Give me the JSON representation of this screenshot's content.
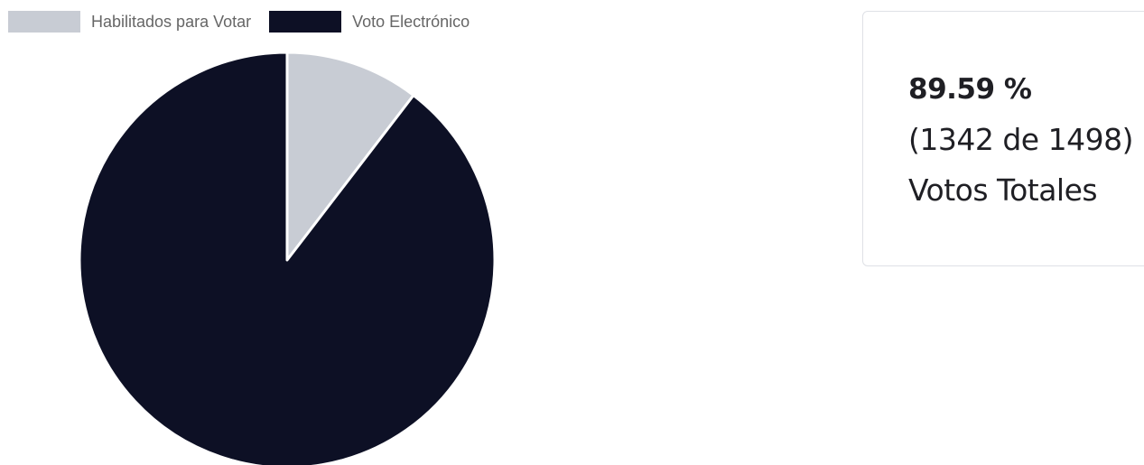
{
  "chart_data": {
    "type": "pie",
    "categories": [
      "Habilitados para Votar",
      "Voto Electrónico"
    ],
    "values": [
      156,
      1342
    ],
    "colors": [
      "#c8ccd4",
      "#0d1025"
    ],
    "legend_position": "top-left"
  },
  "stat_card": {
    "percent": "89.59 %",
    "detail": "(1342 de 1498)",
    "caption": "Votos Totales"
  }
}
